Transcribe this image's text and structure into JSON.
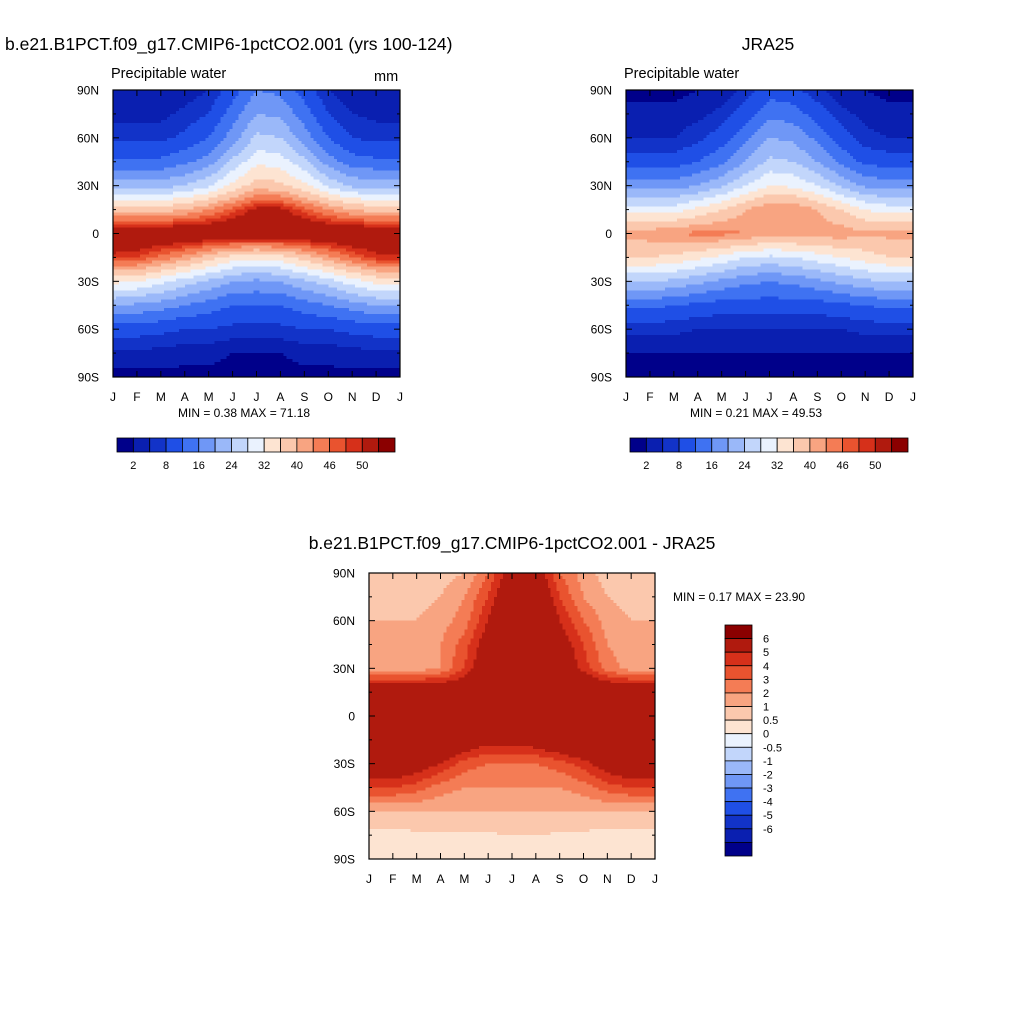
{
  "palette": {
    "seq": [
      "#00008a",
      "#0a1fb0",
      "#1233c8",
      "#1f4fe6",
      "#3f72f2",
      "#6f97f6",
      "#9ab8f9",
      "#c2d6fb",
      "#eaf2fe",
      "#fde4d2",
      "#fbc8ad",
      "#f8a481",
      "#f47c55",
      "#e9532f",
      "#d6301a",
      "#b01a0e",
      "#8b0000"
    ],
    "diff": [
      "#00008a",
      "#0a1fb0",
      "#1233c8",
      "#1f4fe6",
      "#3f72f2",
      "#6f97f6",
      "#9ab8f9",
      "#c2d6fb",
      "#eaf2fe",
      "#fde4d2",
      "#fbc8ad",
      "#f8a481",
      "#f47c55",
      "#e9532f",
      "#d6301a",
      "#b01a0e",
      "#8b0000"
    ]
  },
  "axes": {
    "months": [
      "J",
      "F",
      "M",
      "A",
      "M",
      "J",
      "J",
      "A",
      "S",
      "O",
      "N",
      "D",
      "J"
    ],
    "lats": [
      "90N",
      "60N",
      "30N",
      "0",
      "30S",
      "60S",
      "90S"
    ]
  },
  "panels": {
    "model": {
      "title": "b.e21.B1PCT.f09_g17.CMIP6-1pctCO2.001 (yrs 100-124)",
      "var_label": "Precipitable water",
      "units": "mm",
      "minmax": "MIN =   0.38 MAX =  71.18",
      "colorbar_labels": [
        "2",
        "8",
        "16",
        "24",
        "32",
        "40",
        "46",
        "50"
      ]
    },
    "obs": {
      "title": "JRA25",
      "var_label": "Precipitable water",
      "minmax": "MIN =   0.21 MAX =  49.53",
      "colorbar_labels": [
        "2",
        "8",
        "16",
        "24",
        "32",
        "40",
        "46",
        "50"
      ]
    },
    "diff": {
      "title": "b.e21.B1PCT.f09_g17.CMIP6-1pctCO2.001 - JRA25",
      "minmax": "MIN =   0.17 MAX =  23.90",
      "colorbar_labels": [
        "6",
        "5",
        "4",
        "3",
        "2",
        "1",
        "0.5",
        "0",
        "-0.5",
        "-1",
        "-2",
        "-3",
        "-4",
        "-5",
        "-6"
      ]
    }
  },
  "chart_data": [
    {
      "type": "heatmap",
      "title": "b.e21.B1PCT.f09_g17.CMIP6-1pctCO2.001 (yrs 100-124)",
      "subtitle": "Precipitable water",
      "units": "mm",
      "x": [
        "J",
        "F",
        "M",
        "A",
        "M",
        "J",
        "J",
        "A",
        "S",
        "O",
        "N",
        "D",
        "J"
      ],
      "y": [
        90,
        75,
        60,
        45,
        30,
        15,
        0,
        -15,
        -30,
        -45,
        -60,
        -75,
        -90
      ],
      "ylabels": [
        "90N",
        "60N",
        "30N",
        "0",
        "30S",
        "60S",
        "90S"
      ],
      "contour_levels": [
        2,
        5,
        8,
        12,
        16,
        20,
        24,
        28,
        32,
        36,
        40,
        43,
        46,
        48,
        50
      ],
      "z": [
        [
          2,
          2,
          2,
          3,
          5,
          10,
          16,
          15,
          10,
          5,
          3,
          2,
          2
        ],
        [
          4,
          4,
          4,
          6,
          8,
          14,
          20,
          19,
          14,
          8,
          5,
          4,
          4
        ],
        [
          7,
          7,
          7,
          9,
          12,
          18,
          25,
          24,
          18,
          12,
          8,
          7,
          7
        ],
        [
          13,
          13,
          13,
          15,
          18,
          25,
          31,
          30,
          25,
          18,
          14,
          13,
          13
        ],
        [
          22,
          22,
          22,
          24,
          27,
          33,
          38,
          37,
          33,
          27,
          23,
          22,
          22
        ],
        [
          38,
          38,
          38,
          40,
          43,
          47,
          51,
          51,
          47,
          43,
          40,
          38,
          38
        ],
        [
          55,
          55,
          55,
          55,
          55,
          55,
          55,
          55,
          55,
          55,
          55,
          55,
          55
        ],
        [
          49,
          48,
          45,
          42,
          38,
          34,
          33,
          34,
          38,
          42,
          46,
          49,
          49
        ],
        [
          33,
          32,
          29,
          26,
          23,
          20,
          19,
          20,
          23,
          26,
          30,
          33,
          33
        ],
        [
          20,
          19,
          18,
          16,
          14,
          12,
          12,
          12,
          14,
          16,
          18,
          20,
          20
        ],
        [
          10,
          10,
          9,
          8,
          8,
          7,
          7,
          7,
          8,
          8,
          9,
          10,
          10
        ],
        [
          4,
          4,
          4,
          3,
          3,
          2,
          2,
          2,
          3,
          3,
          4,
          4,
          4
        ],
        [
          1,
          1,
          1,
          1,
          1,
          1,
          1,
          1,
          1,
          1,
          1,
          1,
          1
        ]
      ],
      "min": 0.38,
      "max": 71.18
    },
    {
      "type": "heatmap",
      "title": "JRA25",
      "subtitle": "Precipitable water",
      "x": [
        "J",
        "F",
        "M",
        "A",
        "M",
        "J",
        "J",
        "A",
        "S",
        "O",
        "N",
        "D",
        "J"
      ],
      "y": [
        90,
        75,
        60,
        45,
        30,
        15,
        0,
        -15,
        -30,
        -45,
        -60,
        -75,
        -90
      ],
      "ylabels": [
        "90N",
        "60N",
        "30N",
        "0",
        "30S",
        "60S",
        "90S"
      ],
      "contour_levels": [
        2,
        5,
        8,
        12,
        16,
        20,
        24,
        28,
        32,
        36,
        40,
        43,
        46,
        48,
        50
      ],
      "z": [
        [
          1,
          1,
          1,
          2,
          3,
          6,
          10,
          9,
          6,
          3,
          2,
          1,
          1
        ],
        [
          3,
          3,
          3,
          4,
          6,
          10,
          15,
          14,
          10,
          6,
          4,
          3,
          3
        ],
        [
          5,
          5,
          5,
          7,
          10,
          15,
          20,
          19,
          15,
          10,
          6,
          5,
          5
        ],
        [
          10,
          10,
          10,
          12,
          15,
          20,
          25,
          24,
          20,
          15,
          11,
          10,
          10
        ],
        [
          18,
          18,
          18,
          20,
          23,
          28,
          32,
          31,
          28,
          23,
          19,
          18,
          18
        ],
        [
          30,
          30,
          30,
          33,
          36,
          40,
          43,
          43,
          40,
          36,
          32,
          30,
          30
        ],
        [
          41,
          42,
          43,
          44,
          44,
          43,
          42,
          42,
          42,
          42,
          41,
          41,
          41
        ],
        [
          36,
          36,
          35,
          33,
          31,
          28,
          27,
          28,
          30,
          32,
          34,
          36,
          36
        ],
        [
          24,
          24,
          23,
          21,
          19,
          17,
          16,
          17,
          19,
          21,
          23,
          24,
          24
        ],
        [
          13,
          13,
          12,
          11,
          10,
          10,
          10,
          10,
          10,
          11,
          12,
          13,
          13
        ],
        [
          6,
          6,
          6,
          5,
          5,
          5,
          5,
          5,
          5,
          5,
          6,
          6,
          6
        ],
        [
          2,
          2,
          2,
          2,
          2,
          2,
          2,
          2,
          2,
          2,
          2,
          2,
          2
        ],
        [
          1,
          1,
          1,
          1,
          1,
          1,
          1,
          1,
          1,
          1,
          1,
          1,
          1
        ]
      ],
      "min": 0.21,
      "max": 49.53
    },
    {
      "type": "heatmap",
      "title": "b.e21.B1PCT.f09_g17.CMIP6-1pctCO2.001 - JRA25",
      "x": [
        "J",
        "F",
        "M",
        "A",
        "M",
        "J",
        "J",
        "A",
        "S",
        "O",
        "N",
        "D",
        "J"
      ],
      "y": [
        90,
        75,
        60,
        45,
        30,
        15,
        0,
        -15,
        -30,
        -45,
        -60,
        -75,
        -90
      ],
      "ylabels": [
        "90N",
        "60N",
        "30N",
        "0",
        "30S",
        "60S",
        "90S"
      ],
      "contour_levels": [
        -6,
        -5,
        -4,
        -3,
        -2,
        -1,
        -0.5,
        0,
        0.5,
        1,
        2,
        3,
        4,
        5,
        6
      ],
      "z": [
        [
          1,
          1,
          1,
          1.5,
          2,
          4,
          7,
          7,
          4,
          2.5,
          1.5,
          1,
          1
        ],
        [
          1.5,
          1.5,
          1.5,
          2,
          3,
          5,
          8,
          8,
          5,
          3,
          2,
          1.5,
          1.5
        ],
        [
          2,
          2,
          2,
          2.5,
          3.5,
          6,
          9,
          9,
          6,
          4,
          2.5,
          2,
          2
        ],
        [
          2.5,
          2.5,
          2.5,
          3,
          4.5,
          7,
          10,
          10,
          7,
          5,
          3,
          2.5,
          2.5
        ],
        [
          2.5,
          2.5,
          2.5,
          3,
          5,
          8,
          11,
          11,
          8,
          5.5,
          3.5,
          2.5,
          2.5
        ],
        [
          8,
          8,
          8,
          8,
          8,
          10,
          11,
          11,
          10,
          9,
          8,
          8,
          8
        ],
        [
          14,
          14,
          13,
          12,
          12,
          12,
          13,
          13,
          13,
          13,
          14,
          14,
          14
        ],
        [
          11,
          11,
          10,
          9,
          7.5,
          6.5,
          6.5,
          7,
          8,
          9,
          10,
          11,
          11
        ],
        [
          8,
          8,
          7,
          6,
          4.5,
          4,
          4,
          4,
          4.5,
          5.5,
          7,
          8,
          8
        ],
        [
          5,
          5,
          4.5,
          3.5,
          3,
          3,
          3,
          3,
          3,
          3.5,
          4.5,
          5,
          5
        ],
        [
          2,
          2,
          2,
          2,
          2,
          2,
          2,
          2,
          2,
          2,
          2,
          2,
          2
        ],
        [
          0.7,
          0.7,
          0.8,
          0.8,
          0.9,
          0.9,
          1,
          1,
          0.9,
          0.8,
          0.7,
          0.7,
          0.7
        ],
        [
          0.6,
          0.6,
          0.6,
          0.6,
          0.6,
          0.6,
          0.6,
          0.6,
          0.6,
          0.6,
          0.6,
          0.6,
          0.6
        ]
      ],
      "min": 0.17,
      "max": 23.9
    }
  ]
}
